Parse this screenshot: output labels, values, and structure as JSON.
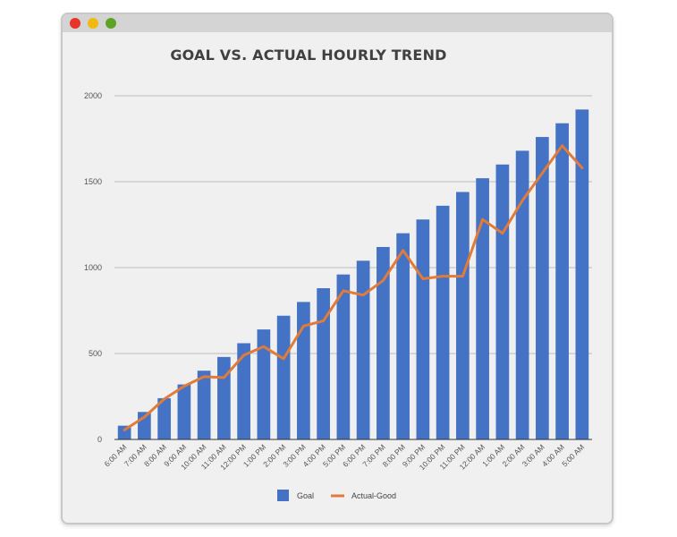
{
  "window": {
    "buttons": [
      {
        "name": "close",
        "color": "#e7352b"
      },
      {
        "name": "minimize",
        "color": "#f2b90f"
      },
      {
        "name": "maximize",
        "color": "#5fa326"
      }
    ]
  },
  "chart_data": {
    "type": "bar",
    "title": "GOAL VS. ACTUAL HOURLY TREND",
    "xlabel": "",
    "ylabel": "",
    "ylim": [
      0,
      2000
    ],
    "yticks": [
      0,
      500,
      1000,
      1500,
      2000
    ],
    "grid": true,
    "legend_position": "bottom",
    "categories": [
      "6:00 AM",
      "7:00 AM",
      "8:00 AM",
      "9:00 AM",
      "10:00 AM",
      "11:00 AM",
      "12:00 PM",
      "1:00 PM",
      "2:00 PM",
      "3:00 PM",
      "4:00 PM",
      "5:00 PM",
      "6:00 PM",
      "7:00 PM",
      "8:00 PM",
      "9:00 PM",
      "10:00 PM",
      "11:00 PM",
      "12:00 AM",
      "1:00 AM",
      "2:00 AM",
      "3:00 AM",
      "4:00 AM",
      "5:00 AM"
    ],
    "series": [
      {
        "name": "Goal",
        "type": "bar",
        "color": "#4472c4",
        "values": [
          80,
          160,
          240,
          320,
          400,
          480,
          560,
          640,
          720,
          800,
          880,
          960,
          1040,
          1120,
          1200,
          1280,
          1360,
          1440,
          1520,
          1600,
          1680,
          1760,
          1840,
          1920
        ]
      },
      {
        "name": "Actual-Good",
        "type": "line",
        "color": "#e07b39",
        "values": [
          55,
          130,
          235,
          310,
          365,
          360,
          490,
          540,
          470,
          660,
          690,
          865,
          840,
          925,
          1100,
          935,
          950,
          950,
          1280,
          1200,
          1390,
          1550,
          1710,
          1580
        ]
      }
    ]
  }
}
